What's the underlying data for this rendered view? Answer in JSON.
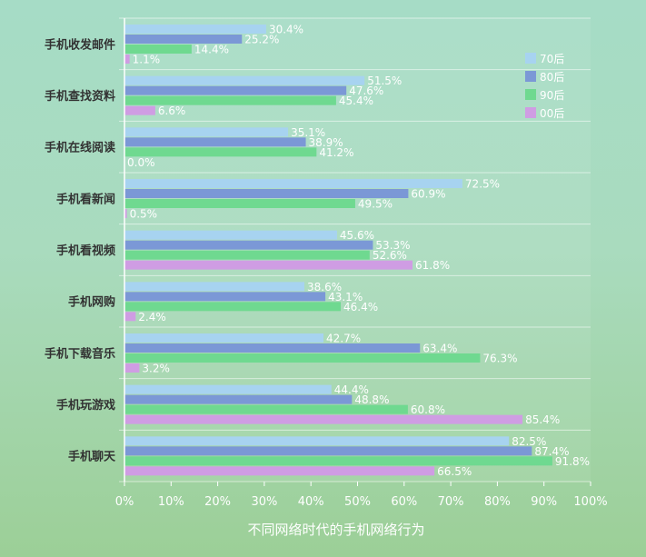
{
  "chart_data": {
    "type": "bar",
    "orientation": "horizontal",
    "title": "不同网络时代的手机网络行为",
    "categories": [
      "手机收发邮件",
      "手机查找资料",
      "手机在线阅读",
      "手机看新闻",
      "手机看视频",
      "手机网购",
      "手机下载音乐",
      "手机玩游戏",
      "手机聊天"
    ],
    "series": [
      {
        "name": "70后",
        "color": "#a7d3f0",
        "values": [
          30.4,
          51.5,
          35.1,
          72.5,
          45.6,
          38.6,
          42.7,
          44.4,
          82.5
        ]
      },
      {
        "name": "80后",
        "color": "#7b98d6",
        "values": [
          25.2,
          47.6,
          38.9,
          60.9,
          53.3,
          43.1,
          63.4,
          48.8,
          87.4
        ]
      },
      {
        "name": "90后",
        "color": "#6fd990",
        "values": [
          14.4,
          45.4,
          41.2,
          49.5,
          52.6,
          46.4,
          76.3,
          60.8,
          91.8
        ]
      },
      {
        "name": "00后",
        "color": "#cf9de3",
        "values": [
          1.1,
          6.6,
          0.0,
          0.5,
          61.8,
          2.4,
          3.2,
          85.4,
          66.5
        ]
      }
    ],
    "xlim": [
      0,
      100
    ],
    "x_ticks": [
      "0%",
      "10%",
      "20%",
      "30%",
      "40%",
      "50%",
      "60%",
      "70%",
      "80%",
      "90%",
      "100%"
    ],
    "value_format": "percent_1dp",
    "legend_position": "top-right",
    "grid": {
      "horizontal_separators": true
    }
  }
}
